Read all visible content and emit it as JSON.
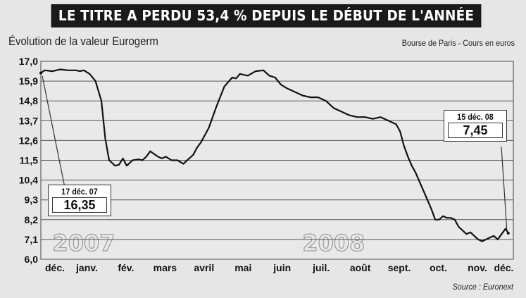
{
  "header": {
    "title": "LE TITRE A PERDU 53,4 % DEPUIS LE DÉBUT DE L'ANNÉE",
    "subtitle": "Évolution de la valeur Eurogerm",
    "source_label": "Bourse de Paris - Cours en euros",
    "credit": "Source : Euronext"
  },
  "colors": {
    "background": "#e6e6e6",
    "title_bar": "#1a1a1a",
    "line": "#111111",
    "grid": "#555555"
  },
  "chart_data": {
    "type": "line",
    "title": "LE TITRE A PERDU 53,4 % DEPUIS LE DÉBUT DE L'ANNÉE",
    "subtitle": "Évolution de la valeur Eurogerm",
    "ylabel": "",
    "xlabel": "",
    "ylim": [
      6.0,
      17.0
    ],
    "yticks": [
      "17,0",
      "15,9",
      "14,8",
      "13,7",
      "12,6",
      "11,5",
      "10,4",
      "9,3",
      "8,2",
      "7,1",
      "6,0"
    ],
    "ytick_values": [
      17.0,
      15.9,
      14.8,
      13.7,
      12.6,
      11.5,
      10.4,
      9.3,
      8.2,
      7.1,
      6.0
    ],
    "x_month_labels": [
      "déc.",
      "janv.",
      "fév.",
      "mars",
      "avril",
      "mai",
      "juin",
      "juil.",
      "août",
      "sept.",
      "oct.",
      "nov.",
      "déc."
    ],
    "year_labels": [
      "2007",
      "2008"
    ],
    "grid": "horizontal",
    "x_unit": "months since 17 Dec 2007",
    "series": [
      {
        "x": [
          0.0,
          0.1,
          0.3,
          0.5,
          0.7,
          0.9,
          1.0,
          1.1,
          1.25,
          1.4,
          1.55,
          1.65,
          1.75,
          1.9,
          2.0,
          2.1,
          2.2,
          2.35,
          2.5,
          2.6,
          2.7,
          2.8,
          3.0,
          3.1,
          3.2,
          3.35,
          3.5,
          3.65,
          3.8,
          3.9,
          4.0,
          4.1,
          4.3,
          4.5,
          4.7,
          4.9,
          5.0,
          5.1,
          5.3,
          5.5,
          5.7,
          5.85,
          6.0,
          6.15,
          6.3,
          6.5,
          6.7,
          6.9,
          7.1,
          7.3,
          7.5,
          7.7,
          7.9,
          8.1,
          8.3,
          8.5,
          8.7,
          8.9,
          9.0,
          9.1,
          9.2,
          9.3,
          9.4,
          9.5,
          9.6,
          9.7,
          9.8,
          9.9,
          10.0,
          10.1,
          10.2,
          10.3,
          10.4,
          10.5,
          10.6,
          10.7,
          10.8,
          10.9,
          11.0,
          11.1,
          11.2,
          11.3,
          11.4,
          11.5,
          11.6,
          11.7,
          11.8,
          11.9,
          11.97
        ],
        "values": [
          16.35,
          16.5,
          16.45,
          16.55,
          16.5,
          16.5,
          16.45,
          16.5,
          16.3,
          15.9,
          14.8,
          12.7,
          11.5,
          11.2,
          11.25,
          11.6,
          11.2,
          11.5,
          11.55,
          11.5,
          11.7,
          12.0,
          11.7,
          11.6,
          11.7,
          11.5,
          11.5,
          11.3,
          11.6,
          11.8,
          12.2,
          12.5,
          13.3,
          14.5,
          15.6,
          16.1,
          16.05,
          16.3,
          16.2,
          16.45,
          16.5,
          16.2,
          16.1,
          15.7,
          15.5,
          15.3,
          15.1,
          15.0,
          15.0,
          14.8,
          14.4,
          14.2,
          14.0,
          13.9,
          13.9,
          13.8,
          13.9,
          13.7,
          13.6,
          13.5,
          13.1,
          12.3,
          11.7,
          11.2,
          10.8,
          10.3,
          9.8,
          9.3,
          8.8,
          8.2,
          8.2,
          8.4,
          8.3,
          8.3,
          8.2,
          7.8,
          7.6,
          7.4,
          7.5,
          7.3,
          7.1,
          7.0,
          7.1,
          7.2,
          7.3,
          7.1,
          7.4,
          7.7,
          7.45
        ]
      }
    ],
    "annotations": [
      {
        "date": "17 déc. 07",
        "value_label": "16,35",
        "x": 0.0,
        "y": 16.35
      },
      {
        "date": "15 déc. 08",
        "value_label": "7,45",
        "x": 11.97,
        "y": 7.45
      }
    ]
  }
}
